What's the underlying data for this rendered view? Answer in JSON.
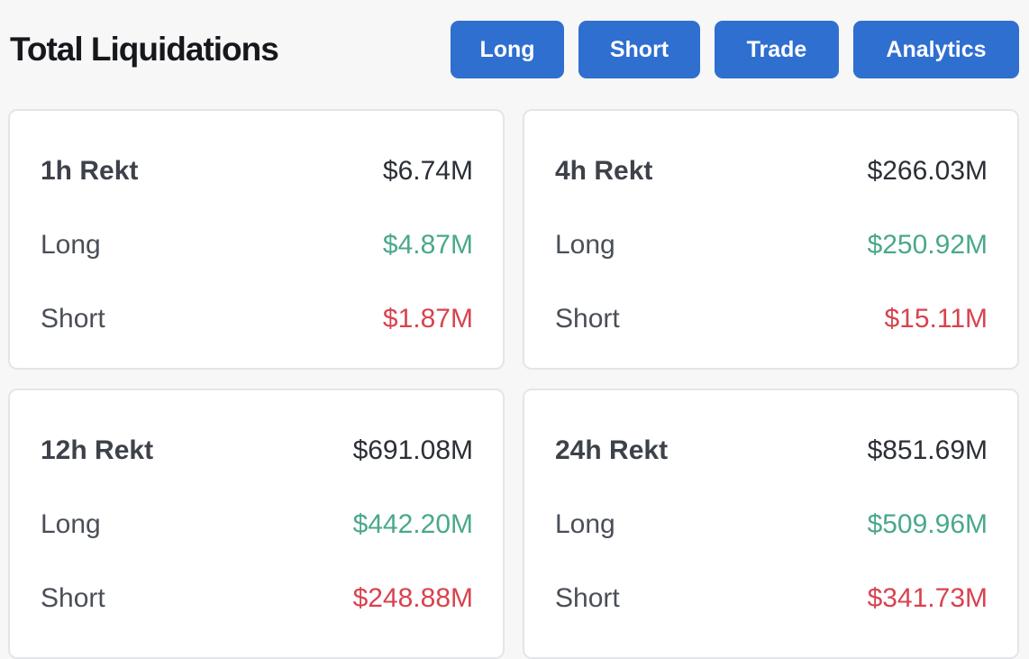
{
  "header": {
    "title": "Total Liquidations",
    "buttons": {
      "long": "Long",
      "short": "Short",
      "trade": "Trade",
      "analytics": "Analytics"
    }
  },
  "colors": {
    "accent": "#2f6fd0",
    "long": "#4aa88c",
    "short": "#d8434f"
  },
  "cards": [
    {
      "title": "1h Rekt",
      "total": "$6.74M",
      "long_label": "Long",
      "long": "$4.87M",
      "short_label": "Short",
      "short": "$1.87M"
    },
    {
      "title": "4h Rekt",
      "total": "$266.03M",
      "long_label": "Long",
      "long": "$250.92M",
      "short_label": "Short",
      "short": "$15.11M"
    },
    {
      "title": "12h Rekt",
      "total": "$691.08M",
      "long_label": "Long",
      "long": "$442.20M",
      "short_label": "Short",
      "short": "$248.88M"
    },
    {
      "title": "24h Rekt",
      "total": "$851.69M",
      "long_label": "Long",
      "long": "$509.96M",
      "short_label": "Short",
      "short": "$341.73M"
    }
  ]
}
